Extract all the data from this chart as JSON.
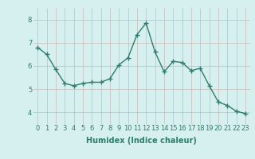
{
  "x": [
    0,
    1,
    2,
    3,
    4,
    5,
    6,
    7,
    8,
    9,
    10,
    11,
    12,
    13,
    14,
    15,
    16,
    17,
    18,
    19,
    20,
    21,
    22,
    23
  ],
  "y": [
    6.8,
    6.5,
    5.85,
    5.25,
    5.15,
    5.25,
    5.3,
    5.3,
    5.45,
    6.05,
    6.35,
    7.35,
    7.85,
    6.6,
    5.75,
    6.2,
    6.15,
    5.8,
    5.9,
    5.15,
    4.45,
    4.3,
    4.05,
    3.95
  ],
  "line_color": "#2e7d6e",
  "marker": "+",
  "marker_size": 4,
  "bg_color": "#d6f0ef",
  "grid_color_major": "#c8e8e5",
  "grid_color_minor": "#e0f4f2",
  "xlabel": "Humidex (Indice chaleur)",
  "ylim": [
    3.5,
    8.5
  ],
  "xlim": [
    -0.5,
    23.5
  ],
  "yticks": [
    4,
    5,
    6,
    7,
    8
  ],
  "xticks": [
    0,
    1,
    2,
    3,
    4,
    5,
    6,
    7,
    8,
    9,
    10,
    11,
    12,
    13,
    14,
    15,
    16,
    17,
    18,
    19,
    20,
    21,
    22,
    23
  ],
  "tick_fontsize": 6,
  "xlabel_fontsize": 7,
  "line_width": 1.0,
  "marker_edge_width": 1.0
}
